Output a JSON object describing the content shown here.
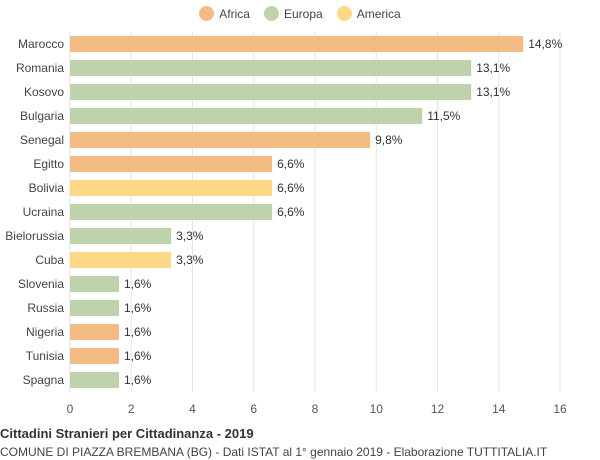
{
  "legend": [
    {
      "name": "Africa",
      "color": "#f3ba83"
    },
    {
      "name": "Europa",
      "color": "#bfd3ab"
    },
    {
      "name": "America",
      "color": "#fdd888"
    }
  ],
  "chart_data": {
    "type": "bar",
    "orientation": "horizontal",
    "categories": [
      "Marocco",
      "Romania",
      "Kosovo",
      "Bulgaria",
      "Senegal",
      "Egitto",
      "Bolivia",
      "Ucraina",
      "Bielorussia",
      "Cuba",
      "Slovenia",
      "Russia",
      "Nigeria",
      "Tunisia",
      "Spagna"
    ],
    "values": [
      14.8,
      13.1,
      13.1,
      11.5,
      9.8,
      6.6,
      6.6,
      6.6,
      3.3,
      3.3,
      1.6,
      1.6,
      1.6,
      1.6,
      1.6
    ],
    "value_labels": [
      "14,8%",
      "13,1%",
      "13,1%",
      "11,5%",
      "9,8%",
      "6,6%",
      "6,6%",
      "6,6%",
      "3,3%",
      "3,3%",
      "1,6%",
      "1,6%",
      "1,6%",
      "1,6%",
      "1,6%"
    ],
    "continents": [
      "Africa",
      "Europa",
      "Europa",
      "Europa",
      "Africa",
      "Africa",
      "America",
      "Europa",
      "Europa",
      "America",
      "Europa",
      "Europa",
      "Africa",
      "Africa",
      "Europa"
    ],
    "xlim": [
      0,
      16
    ],
    "xticks": [
      0,
      2,
      4,
      6,
      8,
      10,
      12,
      14,
      16
    ],
    "grid": true,
    "legend_position": "top-center"
  },
  "title": "Cittadini Stranieri per Cittadinanza - 2019",
  "subtitle": "COMUNE DI PIAZZA BREMBANA (BG) - Dati ISTAT al 1° gennaio 2019 - Elaborazione TUTTITALIA.IT"
}
